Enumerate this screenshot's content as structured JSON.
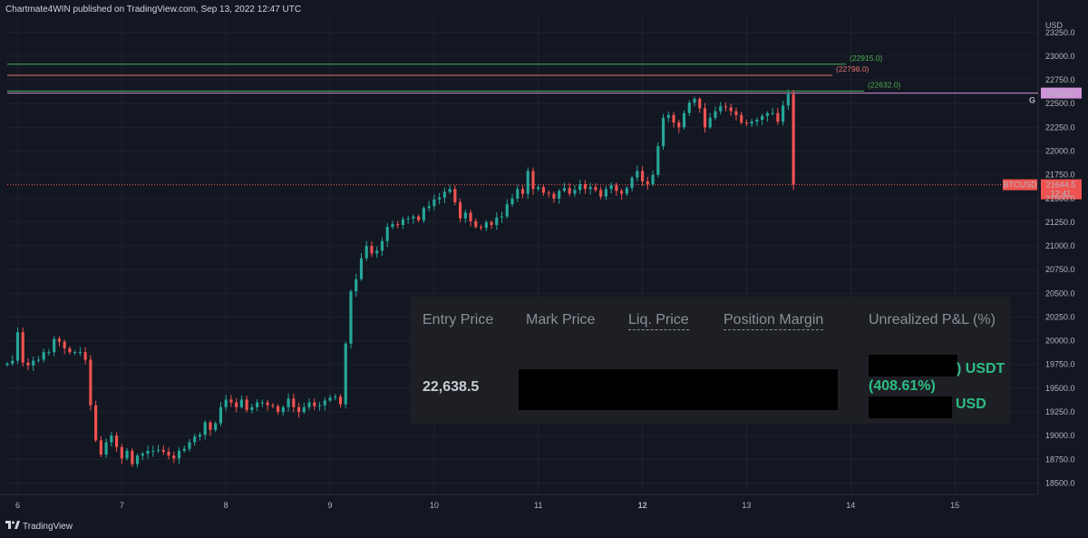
{
  "header": {
    "publisher_text": "Chartmate4WIN published on TradingView.com, Sep 13, 2022 12:47 UTC"
  },
  "footer": {
    "brand": "TradingView"
  },
  "colors": {
    "background": "#131722",
    "up": "#26a69a",
    "down": "#ef5350",
    "level_green": "#4caf50",
    "level_pink": "#e57373",
    "level_violet": "#ce93d8"
  },
  "chart_data": {
    "type": "candlestick",
    "symbol": "BTCUSD",
    "y_axis": {
      "unit_label": "USD",
      "ticks": [
        "18500.0",
        "18750.0",
        "19000.0",
        "19250.0",
        "19500.0",
        "19750.0",
        "20000.0",
        "20250.0",
        "20500.0",
        "20750.0",
        "21000.0",
        "21250.0",
        "21500.0",
        "21750.0",
        "22000.0",
        "22250.0",
        "22500.0",
        "22750.0",
        "23000.0",
        "23250.0"
      ],
      "ylim": [
        18380,
        23420
      ]
    },
    "x_axis": {
      "ticks": [
        "6",
        "7",
        "8",
        "9",
        "10",
        "11",
        "12",
        "13",
        "14",
        "15"
      ],
      "bold_ticks": [
        "12"
      ],
      "xlim": [
        5.9,
        15.8
      ]
    },
    "levels": [
      {
        "label": "(22915.0)",
        "value": 22915,
        "color": "#4caf50"
      },
      {
        "label": "(22798.0)",
        "value": 22798,
        "color": "#e57373"
      },
      {
        "label": "(22632.0)",
        "value": 22632,
        "color": "#4caf50"
      },
      {
        "label": "22611.0",
        "value": 22611,
        "color": "#ce93d8",
        "tag": "G"
      }
    ],
    "current_price": {
      "label": "BTCUSD",
      "value": "21644.5",
      "countdown": "12:41",
      "price": 21644.5
    },
    "candle_closes": [
      [
        5.9,
        19760
      ],
      [
        5.95,
        19790
      ],
      [
        6.0,
        20090
      ],
      [
        6.05,
        19770
      ],
      [
        6.1,
        19740
      ],
      [
        6.15,
        19790
      ],
      [
        6.2,
        19800
      ],
      [
        6.25,
        19880
      ],
      [
        6.3,
        19880
      ],
      [
        6.35,
        20020
      ],
      [
        6.4,
        19990
      ],
      [
        6.45,
        19920
      ],
      [
        6.5,
        19880
      ],
      [
        6.55,
        19880
      ],
      [
        6.6,
        19880
      ],
      [
        6.65,
        19800
      ],
      [
        6.7,
        19320
      ],
      [
        6.75,
        18950
      ],
      [
        6.8,
        18800
      ],
      [
        6.85,
        18930
      ],
      [
        6.9,
        19000
      ],
      [
        6.95,
        18880
      ],
      [
        7.0,
        18760
      ],
      [
        7.05,
        18840
      ],
      [
        7.1,
        18700
      ],
      [
        7.15,
        18790
      ],
      [
        7.2,
        18810
      ],
      [
        7.25,
        18840
      ],
      [
        7.3,
        18840
      ],
      [
        7.35,
        18850
      ],
      [
        7.4,
        18830
      ],
      [
        7.45,
        18790
      ],
      [
        7.5,
        18760
      ],
      [
        7.55,
        18840
      ],
      [
        7.6,
        18860
      ],
      [
        7.65,
        18930
      ],
      [
        7.7,
        18990
      ],
      [
        7.75,
        19010
      ],
      [
        7.8,
        19140
      ],
      [
        7.85,
        19060
      ],
      [
        7.9,
        19130
      ],
      [
        7.95,
        19300
      ],
      [
        8.0,
        19380
      ],
      [
        8.05,
        19350
      ],
      [
        8.1,
        19300
      ],
      [
        8.15,
        19380
      ],
      [
        8.2,
        19270
      ],
      [
        8.25,
        19300
      ],
      [
        8.3,
        19350
      ],
      [
        8.35,
        19350
      ],
      [
        8.4,
        19320
      ],
      [
        8.45,
        19310
      ],
      [
        8.5,
        19250
      ],
      [
        8.55,
        19300
      ],
      [
        8.6,
        19390
      ],
      [
        8.65,
        19300
      ],
      [
        8.7,
        19250
      ],
      [
        8.75,
        19300
      ],
      [
        8.8,
        19350
      ],
      [
        8.85,
        19310
      ],
      [
        8.9,
        19320
      ],
      [
        8.95,
        19370
      ],
      [
        9.0,
        19400
      ],
      [
        9.05,
        19410
      ],
      [
        9.1,
        19330
      ],
      [
        9.15,
        19970
      ],
      [
        9.2,
        20520
      ],
      [
        9.25,
        20650
      ],
      [
        9.3,
        20870
      ],
      [
        9.35,
        21000
      ],
      [
        9.4,
        20920
      ],
      [
        9.45,
        20950
      ],
      [
        9.5,
        21050
      ],
      [
        9.55,
        21200
      ],
      [
        9.6,
        21230
      ],
      [
        9.65,
        21220
      ],
      [
        9.7,
        21280
      ],
      [
        9.75,
        21290
      ],
      [
        9.8,
        21310
      ],
      [
        9.85,
        21270
      ],
      [
        9.9,
        21400
      ],
      [
        9.95,
        21420
      ],
      [
        10.0,
        21490
      ],
      [
        10.05,
        21510
      ],
      [
        10.1,
        21570
      ],
      [
        10.15,
        21600
      ],
      [
        10.2,
        21460
      ],
      [
        10.25,
        21290
      ],
      [
        10.3,
        21350
      ],
      [
        10.35,
        21260
      ],
      [
        10.4,
        21200
      ],
      [
        10.45,
        21190
      ],
      [
        10.5,
        21250
      ],
      [
        10.55,
        21220
      ],
      [
        10.6,
        21300
      ],
      [
        10.65,
        21310
      ],
      [
        10.7,
        21440
      ],
      [
        10.75,
        21500
      ],
      [
        10.8,
        21600
      ],
      [
        10.85,
        21550
      ],
      [
        10.9,
        21790
      ],
      [
        10.95,
        21600
      ],
      [
        11.0,
        21620
      ],
      [
        11.05,
        21560
      ],
      [
        11.1,
        21550
      ],
      [
        11.15,
        21500
      ],
      [
        11.2,
        21580
      ],
      [
        11.25,
        21610
      ],
      [
        11.3,
        21550
      ],
      [
        11.35,
        21590
      ],
      [
        11.4,
        21650
      ],
      [
        11.45,
        21600
      ],
      [
        11.5,
        21620
      ],
      [
        11.55,
        21590
      ],
      [
        11.6,
        21520
      ],
      [
        11.65,
        21600
      ],
      [
        11.7,
        21640
      ],
      [
        11.75,
        21580
      ],
      [
        11.8,
        21550
      ],
      [
        11.85,
        21610
      ],
      [
        11.9,
        21720
      ],
      [
        11.95,
        21790
      ],
      [
        12.0,
        21680
      ],
      [
        12.05,
        21650
      ],
      [
        12.1,
        21750
      ],
      [
        12.15,
        22050
      ],
      [
        12.2,
        22350
      ],
      [
        12.25,
        22380
      ],
      [
        12.3,
        22300
      ],
      [
        12.35,
        22250
      ],
      [
        12.4,
        22400
      ],
      [
        12.45,
        22510
      ],
      [
        12.5,
        22550
      ],
      [
        12.55,
        22450
      ],
      [
        12.6,
        22250
      ],
      [
        12.65,
        22350
      ],
      [
        12.7,
        22420
      ],
      [
        12.75,
        22470
      ],
      [
        12.8,
        22460
      ],
      [
        12.85,
        22420
      ],
      [
        12.9,
        22380
      ],
      [
        12.95,
        22300
      ],
      [
        13.0,
        22290
      ],
      [
        13.05,
        22310
      ],
      [
        13.1,
        22330
      ],
      [
        13.15,
        22370
      ],
      [
        13.2,
        22400
      ],
      [
        13.25,
        22400
      ],
      [
        13.3,
        22310
      ],
      [
        13.35,
        22480
      ],
      [
        13.4,
        22600
      ],
      [
        13.45,
        21644.5
      ]
    ]
  },
  "position_panel": {
    "headers": [
      "Entry Price",
      "Mark Price",
      "Liq. Price",
      "Position Margin",
      "Unrealized P&L (%)"
    ],
    "entry_price": "22,638.5",
    "pnl_usdt_suffix": ") USDT",
    "pnl_pct": "(408.61%)",
    "pnl_usd_suffix": "USD"
  }
}
